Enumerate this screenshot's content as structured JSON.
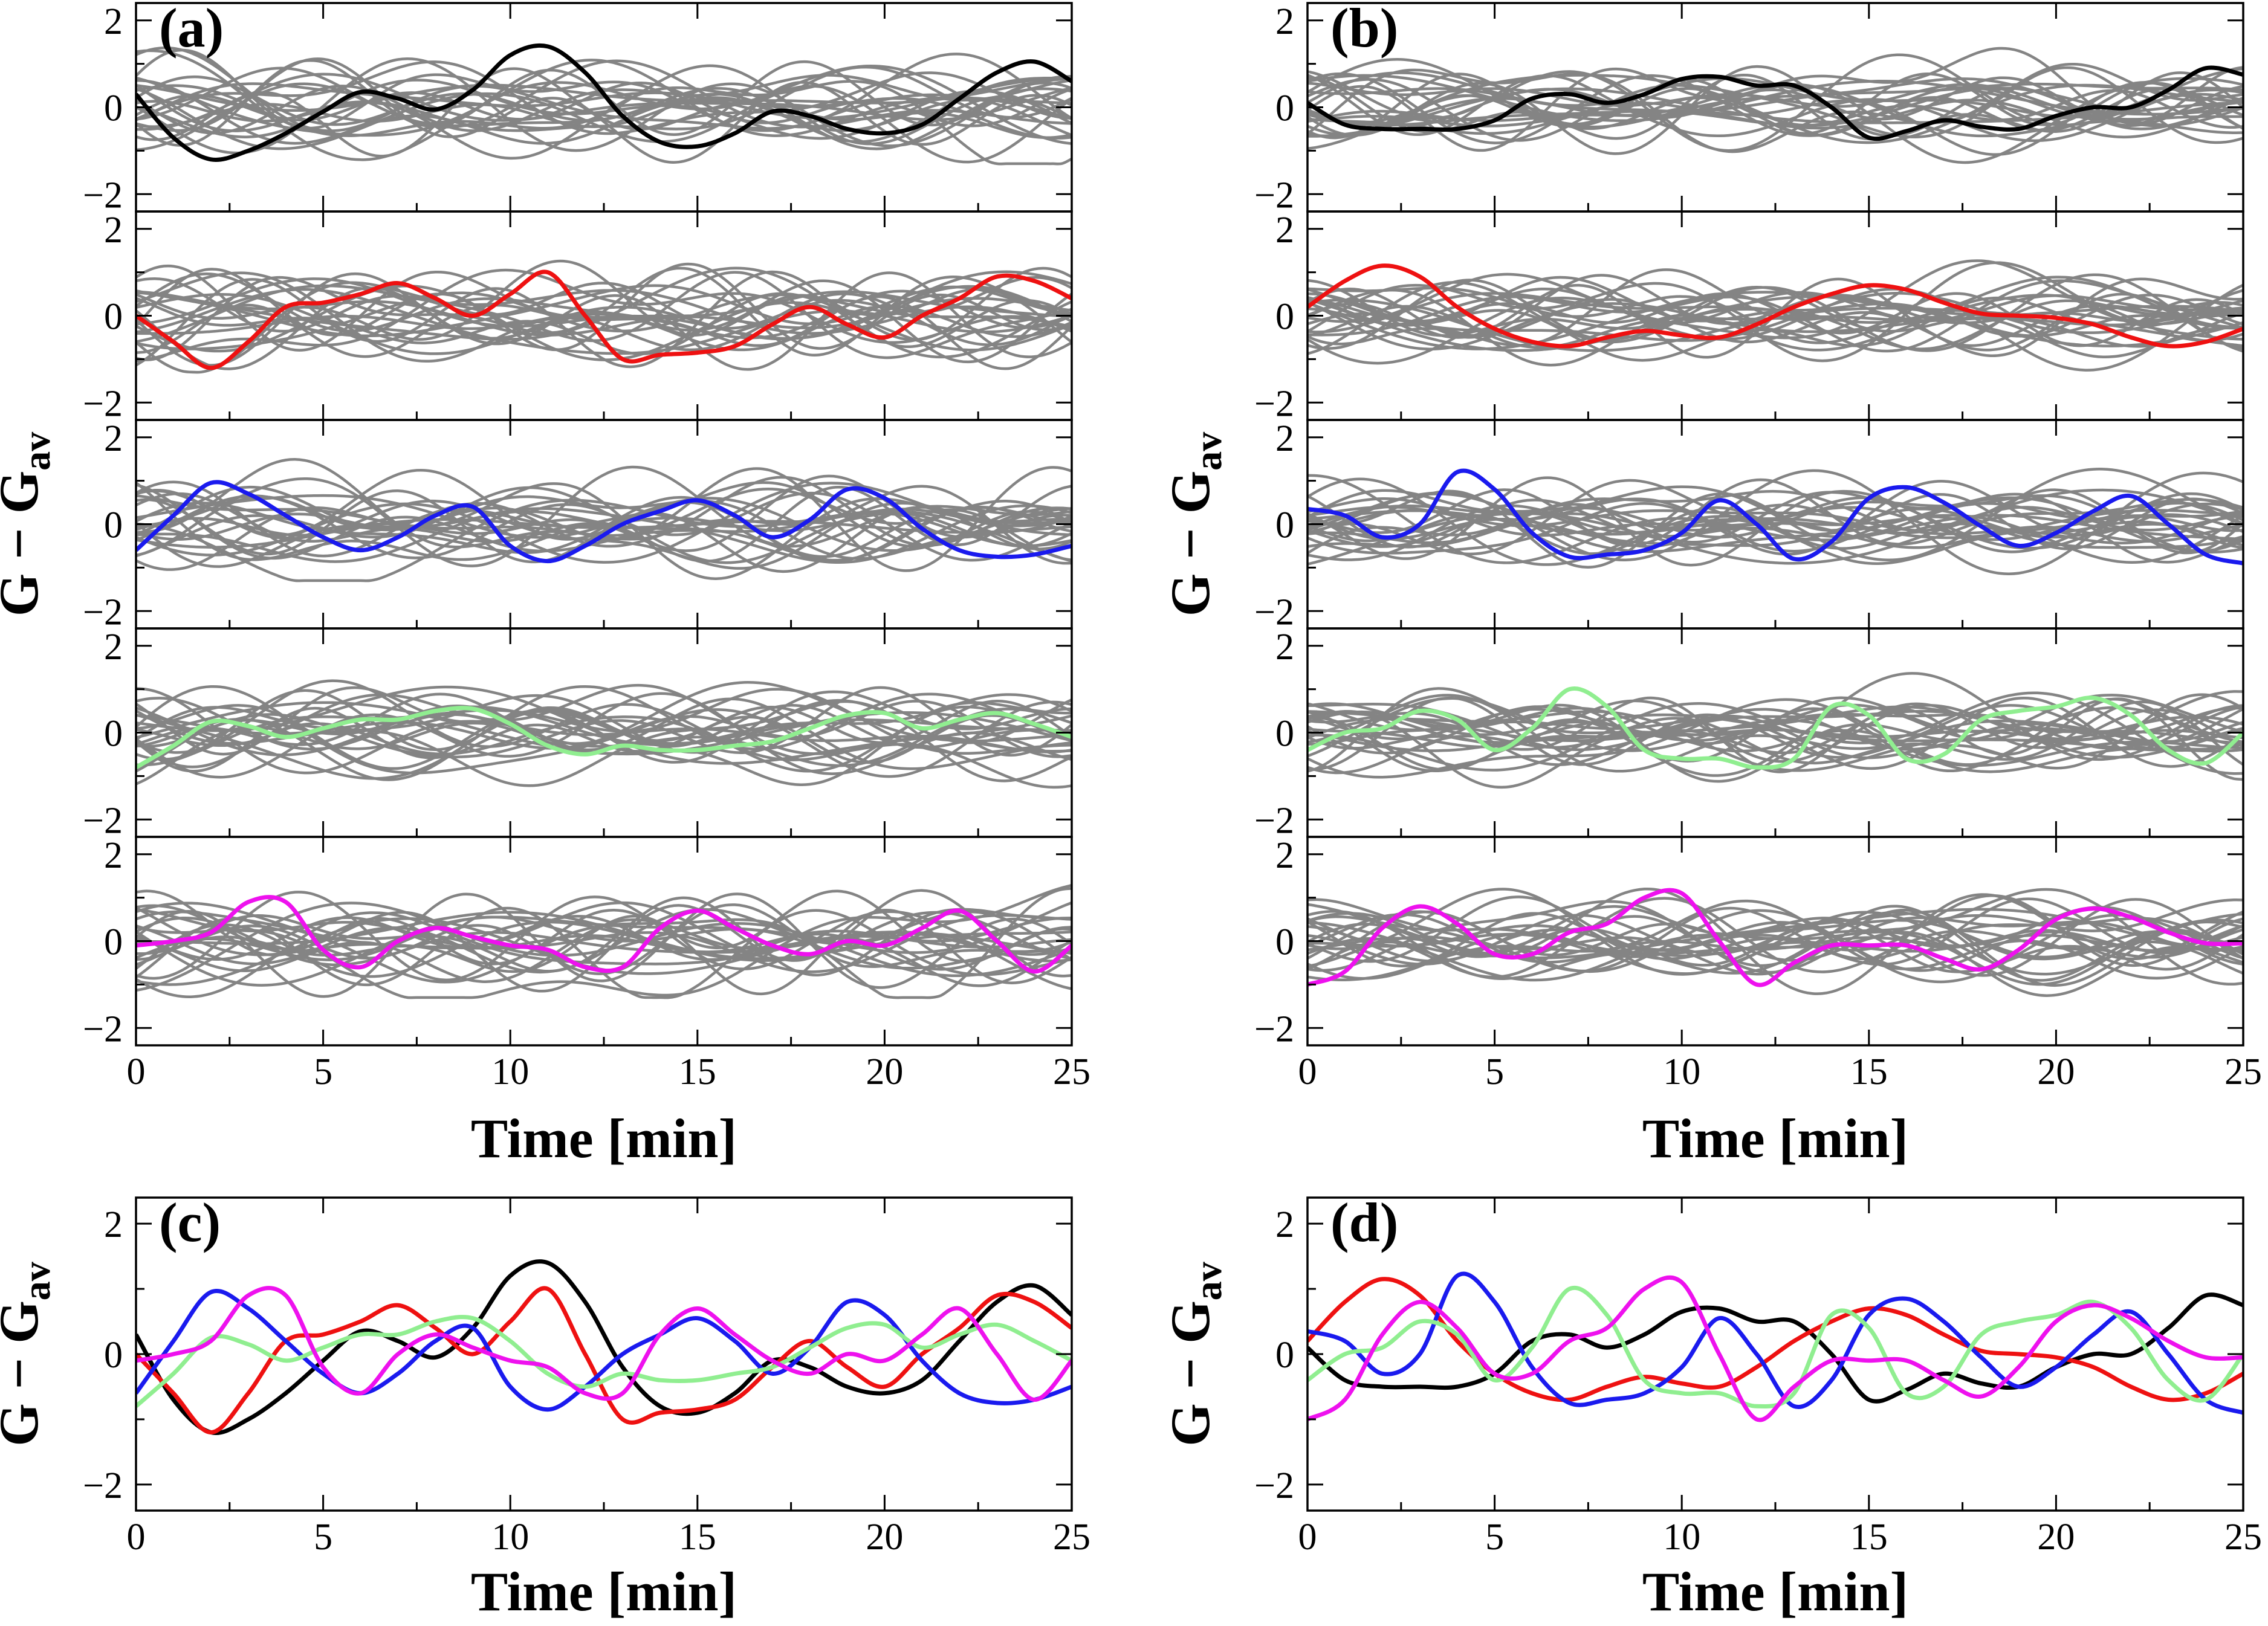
{
  "colors": {
    "background": "#d3d3d3",
    "highlight": [
      "#000000",
      "#ee1111",
      "#1a1aee",
      "#90ee90",
      "#ee11ee"
    ]
  },
  "chart_data": [
    {
      "type": "line",
      "panel_label": "(a)",
      "xlabel": "Time [min]",
      "ylabel": "G − G",
      "ylabel_sub": "av",
      "xlim": [
        0,
        25
      ],
      "ylim": [
        -2.4,
        2.4
      ],
      "xticks": [
        0,
        5,
        10,
        15,
        20,
        25
      ],
      "xtick_labels": [
        "0",
        "5",
        "10",
        "15",
        "20",
        "25"
      ],
      "yticks": [
        -2,
        0,
        2
      ],
      "ytick_labels": [
        "−2",
        "0",
        "2"
      ],
      "subplots": [
        {
          "highlight_color": "#000000",
          "background_lines": 24,
          "background_amplitude": 0.9,
          "highlight": {
            "x": [
              0,
              1,
              2,
              3,
              4,
              5,
              6,
              7,
              8,
              9,
              10,
              11,
              12,
              13,
              14,
              15,
              16,
              17,
              18,
              19,
              20,
              21,
              22,
              23,
              24,
              25
            ],
            "y": [
              0.3,
              -0.7,
              -1.2,
              -1.0,
              -0.6,
              -0.1,
              0.35,
              0.2,
              -0.05,
              0.4,
              1.2,
              1.4,
              0.8,
              -0.2,
              -0.8,
              -0.9,
              -0.6,
              -0.1,
              -0.2,
              -0.5,
              -0.6,
              -0.4,
              0.2,
              0.8,
              1.05,
              0.6
            ]
          }
        },
        {
          "highlight_color": "#ee1111",
          "background_lines": 24,
          "background_amplitude": 0.9,
          "highlight": {
            "x": [
              0,
              1,
              2,
              3,
              4,
              5,
              6,
              7,
              8,
              9,
              10,
              11,
              12,
              13,
              14,
              15,
              16,
              17,
              18,
              19,
              20,
              21,
              22,
              23,
              24,
              25
            ],
            "y": [
              0.0,
              -0.6,
              -1.2,
              -0.6,
              0.2,
              0.3,
              0.5,
              0.75,
              0.4,
              0.0,
              0.5,
              1.0,
              0.0,
              -1.0,
              -0.9,
              -0.85,
              -0.7,
              -0.2,
              0.2,
              -0.2,
              -0.5,
              0.0,
              0.4,
              0.9,
              0.8,
              0.4
            ]
          }
        },
        {
          "highlight_color": "#1a1aee",
          "background_lines": 24,
          "background_amplitude": 0.9,
          "highlight": {
            "x": [
              0,
              1,
              2,
              3,
              4,
              5,
              6,
              7,
              8,
              9,
              10,
              11,
              12,
              13,
              14,
              15,
              16,
              17,
              18,
              19,
              20,
              21,
              22,
              23,
              24,
              25
            ],
            "y": [
              -0.6,
              0.2,
              0.95,
              0.7,
              0.2,
              -0.3,
              -0.6,
              -0.3,
              0.2,
              0.4,
              -0.5,
              -0.85,
              -0.5,
              0.0,
              0.3,
              0.55,
              0.2,
              -0.3,
              0.1,
              0.8,
              0.6,
              -0.1,
              -0.6,
              -0.75,
              -0.7,
              -0.5
            ]
          }
        },
        {
          "highlight_color": "#90ee90",
          "background_lines": 24,
          "background_amplitude": 0.9,
          "highlight": {
            "x": [
              0,
              1,
              2,
              3,
              4,
              5,
              6,
              7,
              8,
              9,
              10,
              11,
              12,
              13,
              14,
              15,
              16,
              17,
              18,
              19,
              20,
              21,
              22,
              23,
              24,
              25
            ],
            "y": [
              -0.8,
              -0.3,
              0.25,
              0.15,
              -0.1,
              0.1,
              0.3,
              0.3,
              0.5,
              0.55,
              0.2,
              -0.3,
              -0.5,
              -0.3,
              -0.4,
              -0.4,
              -0.3,
              -0.2,
              0.1,
              0.4,
              0.45,
              0.1,
              0.3,
              0.45,
              0.2,
              -0.1
            ]
          }
        },
        {
          "highlight_color": "#ee11ee",
          "background_lines": 24,
          "background_amplitude": 0.9,
          "highlight": {
            "x": [
              0,
              1,
              2,
              3,
              4,
              5,
              6,
              7,
              8,
              9,
              10,
              11,
              12,
              13,
              14,
              15,
              16,
              17,
              18,
              19,
              20,
              21,
              22,
              23,
              24,
              25
            ],
            "y": [
              -0.1,
              0.0,
              0.2,
              0.9,
              0.9,
              -0.2,
              -0.6,
              0.0,
              0.3,
              0.1,
              -0.1,
              -0.2,
              -0.6,
              -0.6,
              0.3,
              0.7,
              0.3,
              -0.1,
              -0.3,
              0.0,
              -0.1,
              0.3,
              0.7,
              0.0,
              -0.7,
              -0.1
            ]
          }
        }
      ]
    },
    {
      "type": "line",
      "panel_label": "(b)",
      "xlabel": "Time [min]",
      "ylabel": "G − G",
      "ylabel_sub": "av",
      "xlim": [
        0,
        25
      ],
      "ylim": [
        -2.4,
        2.4
      ],
      "xticks": [
        0,
        5,
        10,
        15,
        20,
        25
      ],
      "xtick_labels": [
        "0",
        "5",
        "10",
        "15",
        "20",
        "25"
      ],
      "yticks": [
        -2,
        0,
        2
      ],
      "ytick_labels": [
        "−2",
        "0",
        "2"
      ],
      "subplots": [
        {
          "highlight_color": "#000000",
          "background_lines": 24,
          "background_amplitude": 0.95,
          "highlight": {
            "x": [
              0,
              1,
              2,
              3,
              4,
              5,
              6,
              7,
              8,
              9,
              10,
              11,
              12,
              13,
              14,
              15,
              16,
              17,
              18,
              19,
              20,
              21,
              22,
              23,
              24,
              25
            ],
            "y": [
              0.1,
              -0.4,
              -0.5,
              -0.5,
              -0.5,
              -0.3,
              0.2,
              0.3,
              0.1,
              0.3,
              0.65,
              0.7,
              0.5,
              0.5,
              0.0,
              -0.7,
              -0.55,
              -0.3,
              -0.45,
              -0.5,
              -0.2,
              0.0,
              0.0,
              0.4,
              0.9,
              0.75
            ]
          }
        },
        {
          "highlight_color": "#ee1111",
          "background_lines": 24,
          "background_amplitude": 0.95,
          "highlight": {
            "x": [
              0,
              1,
              2,
              3,
              4,
              5,
              6,
              7,
              8,
              9,
              10,
              11,
              12,
              13,
              14,
              15,
              16,
              17,
              18,
              19,
              20,
              21,
              22,
              23,
              24,
              25
            ],
            "y": [
              0.2,
              0.8,
              1.15,
              0.9,
              0.2,
              -0.3,
              -0.6,
              -0.7,
              -0.5,
              -0.35,
              -0.45,
              -0.5,
              -0.2,
              0.2,
              0.5,
              0.7,
              0.6,
              0.3,
              0.05,
              0.0,
              -0.05,
              -0.2,
              -0.5,
              -0.7,
              -0.6,
              -0.3
            ]
          }
        },
        {
          "highlight_color": "#1a1aee",
          "background_lines": 24,
          "background_amplitude": 0.95,
          "highlight": {
            "x": [
              0,
              1,
              2,
              3,
              4,
              5,
              6,
              7,
              8,
              9,
              10,
              11,
              12,
              13,
              14,
              15,
              16,
              17,
              18,
              19,
              20,
              21,
              22,
              23,
              24,
              25
            ],
            "y": [
              0.35,
              0.2,
              -0.3,
              0.0,
              1.2,
              0.8,
              -0.2,
              -0.75,
              -0.7,
              -0.6,
              -0.2,
              0.55,
              0.0,
              -0.8,
              -0.4,
              0.6,
              0.85,
              0.5,
              -0.05,
              -0.5,
              -0.2,
              0.3,
              0.65,
              0.0,
              -0.7,
              -0.9
            ]
          }
        },
        {
          "highlight_color": "#90ee90",
          "background_lines": 24,
          "background_amplitude": 0.95,
          "highlight": {
            "x": [
              0,
              1,
              2,
              3,
              4,
              5,
              6,
              7,
              8,
              9,
              10,
              11,
              12,
              13,
              14,
              15,
              16,
              17,
              18,
              19,
              20,
              21,
              22,
              23,
              24,
              25
            ],
            "y": [
              -0.4,
              0.0,
              0.1,
              0.5,
              0.3,
              -0.4,
              0.1,
              1.0,
              0.6,
              -0.4,
              -0.6,
              -0.6,
              -0.8,
              -0.6,
              0.6,
              0.4,
              -0.6,
              -0.5,
              0.3,
              0.5,
              0.6,
              0.8,
              0.4,
              -0.4,
              -0.7,
              0.0
            ]
          }
        },
        {
          "highlight_color": "#ee11ee",
          "background_lines": 24,
          "background_amplitude": 0.95,
          "highlight": {
            "x": [
              0,
              1,
              2,
              3,
              4,
              5,
              6,
              7,
              8,
              9,
              10,
              11,
              12,
              13,
              14,
              15,
              16,
              17,
              18,
              19,
              20,
              21,
              22,
              23,
              24,
              25
            ],
            "y": [
              -1.0,
              -0.7,
              0.3,
              0.8,
              0.4,
              -0.3,
              -0.3,
              0.2,
              0.4,
              1.0,
              1.1,
              0.0,
              -1.0,
              -0.5,
              -0.1,
              -0.1,
              -0.1,
              -0.4,
              -0.65,
              -0.2,
              0.5,
              0.75,
              0.55,
              0.2,
              -0.05,
              -0.05
            ]
          }
        }
      ]
    },
    {
      "type": "line",
      "panel_label": "(c)",
      "xlabel": "Time [min]",
      "ylabel": "G − G",
      "ylabel_sub": "av",
      "xlim": [
        0,
        25
      ],
      "ylim": [
        -2.4,
        2.4
      ],
      "xticks": [
        0,
        5,
        10,
        15,
        20,
        25
      ],
      "xtick_labels": [
        "0",
        "5",
        "10",
        "15",
        "20",
        "25"
      ],
      "yticks": [
        -2,
        0,
        2
      ],
      "ytick_labels": [
        "−2",
        "0",
        "2"
      ],
      "overlay_of": "(a)"
    },
    {
      "type": "line",
      "panel_label": "(d)",
      "xlabel": "Time [min]",
      "ylabel": "G − G",
      "ylabel_sub": "av",
      "xlim": [
        0,
        25
      ],
      "ylim": [
        -2.4,
        2.4
      ],
      "xticks": [
        0,
        5,
        10,
        15,
        20,
        25
      ],
      "xtick_labels": [
        "0",
        "5",
        "10",
        "15",
        "20",
        "25"
      ],
      "yticks": [
        -2,
        0,
        2
      ],
      "ytick_labels": [
        "−2",
        "0",
        "2"
      ],
      "overlay_of": "(b)"
    }
  ]
}
